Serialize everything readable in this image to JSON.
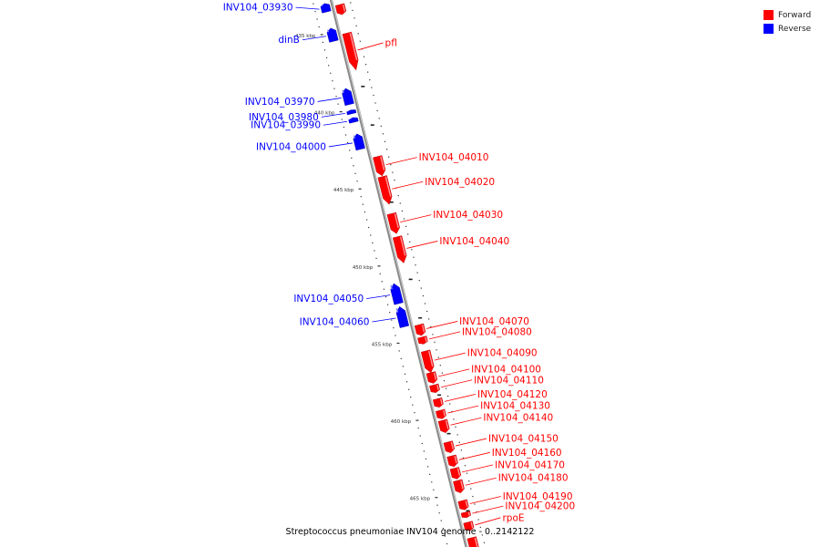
{
  "legend": {
    "forward": {
      "label": "Forward",
      "color": "#ff0000"
    },
    "reverse": {
      "label": "Reverse",
      "color": "#0000ff"
    }
  },
  "caption": "Streptococcus pneumoniae INV104 genome - 0..2142122",
  "ticks": [
    {
      "label": "435 kbp",
      "kbp": 435
    },
    {
      "label": "440 kbp",
      "kbp": 440
    },
    {
      "label": "445 kbp",
      "kbp": 445
    },
    {
      "label": "450 kbp",
      "kbp": 450
    },
    {
      "label": "455 kbp",
      "kbp": 455
    },
    {
      "label": "460 kbp",
      "kbp": 460
    },
    {
      "label": "465 kbp",
      "kbp": 465
    }
  ],
  "genes": [
    {
      "name": "INV104_03930",
      "strand": "reverse",
      "start_kbp": 433.15,
      "end_kbp": 433.7,
      "labeled": true
    },
    {
      "name": "",
      "strand": "forward",
      "start_kbp": 433.45,
      "end_kbp": 434.1,
      "labeled": false
    },
    {
      "name": "dinB",
      "strand": "reverse",
      "start_kbp": 434.75,
      "end_kbp": 435.6,
      "labeled": true
    },
    {
      "name": "pfl",
      "strand": "forward",
      "start_kbp": 435.3,
      "end_kbp": 437.7,
      "labeled": true
    },
    {
      "name": "INV104_03970",
      "strand": "reverse",
      "start_kbp": 438.65,
      "end_kbp": 439.7,
      "labeled": true
    },
    {
      "name": "INV104_03980",
      "strand": "reverse",
      "start_kbp": 440.05,
      "end_kbp": 440.3,
      "labeled": true
    },
    {
      "name": "INV104_03990",
      "strand": "reverse",
      "start_kbp": 440.55,
      "end_kbp": 440.85,
      "labeled": true
    },
    {
      "name": "INV104_04000",
      "strand": "reverse",
      "start_kbp": 441.6,
      "end_kbp": 442.6,
      "labeled": true
    },
    {
      "name": "INV104_04010",
      "strand": "forward",
      "start_kbp": 443.3,
      "end_kbp": 444.55,
      "labeled": true
    },
    {
      "name": "INV104_04020",
      "strand": "forward",
      "start_kbp": 444.6,
      "end_kbp": 446.4,
      "labeled": true
    },
    {
      "name": "INV104_04030",
      "strand": "forward",
      "start_kbp": 447.0,
      "end_kbp": 448.3,
      "labeled": true
    },
    {
      "name": "INV104_04040",
      "strand": "forward",
      "start_kbp": 448.5,
      "end_kbp": 450.2,
      "labeled": true
    },
    {
      "name": "INV104_04050",
      "strand": "reverse",
      "start_kbp": 451.3,
      "end_kbp": 452.6,
      "labeled": true
    },
    {
      "name": "INV104_04060",
      "strand": "reverse",
      "start_kbp": 452.8,
      "end_kbp": 454.1,
      "labeled": true
    },
    {
      "name": "INV104_04070",
      "strand": "forward",
      "start_kbp": 454.2,
      "end_kbp": 454.9,
      "labeled": true
    },
    {
      "name": "INV104_04080",
      "strand": "forward",
      "start_kbp": 455.0,
      "end_kbp": 455.45,
      "labeled": true
    },
    {
      "name": "INV104_04090",
      "strand": "forward",
      "start_kbp": 455.9,
      "end_kbp": 457.3,
      "labeled": true
    },
    {
      "name": "INV104_04100",
      "strand": "forward",
      "start_kbp": 457.3,
      "end_kbp": 458.0,
      "labeled": true
    },
    {
      "name": "INV104_04110",
      "strand": "forward",
      "start_kbp": 458.1,
      "end_kbp": 458.6,
      "labeled": true
    },
    {
      "name": "INV104_04120",
      "strand": "forward",
      "start_kbp": 459.0,
      "end_kbp": 459.55,
      "labeled": true
    },
    {
      "name": "INV104_04130",
      "strand": "forward",
      "start_kbp": 459.75,
      "end_kbp": 460.3,
      "labeled": true
    },
    {
      "name": "INV104_04140",
      "strand": "forward",
      "start_kbp": 460.4,
      "end_kbp": 461.2,
      "labeled": true
    },
    {
      "name": "INV104_04150",
      "strand": "forward",
      "start_kbp": 461.8,
      "end_kbp": 462.5,
      "labeled": true
    },
    {
      "name": "INV104_04160",
      "strand": "forward",
      "start_kbp": 462.7,
      "end_kbp": 463.4,
      "labeled": true
    },
    {
      "name": "INV104_04170",
      "strand": "forward",
      "start_kbp": 463.5,
      "end_kbp": 464.2,
      "labeled": true
    },
    {
      "name": "INV104_04180",
      "strand": "forward",
      "start_kbp": 464.3,
      "end_kbp": 465.1,
      "labeled": true
    },
    {
      "name": "INV104_04190",
      "strand": "forward",
      "start_kbp": 465.6,
      "end_kbp": 466.2,
      "labeled": true
    },
    {
      "name": "INV104_04200",
      "strand": "forward",
      "start_kbp": 466.35,
      "end_kbp": 466.7,
      "labeled": true
    },
    {
      "name": "rpoE",
      "strand": "forward",
      "start_kbp": 467.0,
      "end_kbp": 467.55,
      "labeled": true
    },
    {
      "name": "",
      "strand": "forward",
      "start_kbp": 468.0,
      "end_kbp": 469.4,
      "labeled": false
    }
  ]
}
